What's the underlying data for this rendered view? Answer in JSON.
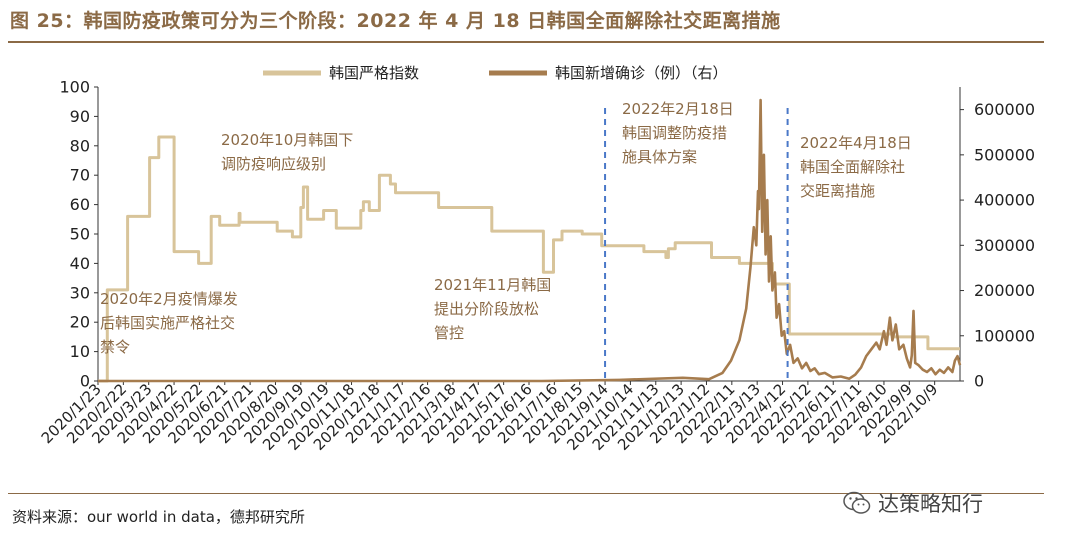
{
  "figure": {
    "title": "图 25：韩国防疫政策可分为三个阶段：2022 年 4 月 18 日韩国全面解除社交距离措施",
    "source": "资料来源：our world in data，德邦研究所",
    "watermark": "达策略知行"
  },
  "chart_data": {
    "type": "line",
    "title": "",
    "xlabel": "",
    "ylabel_left": "",
    "ylabel_right": "",
    "ylim_left": [
      0,
      100
    ],
    "ylim_right": [
      0,
      650000
    ],
    "yticks_left": [
      "0",
      "10",
      "20",
      "30",
      "40",
      "50",
      "60",
      "70",
      "80",
      "90",
      "100"
    ],
    "yticks_right": [
      "0",
      "100000",
      "200000",
      "300000",
      "400000",
      "500000",
      "600000"
    ],
    "x_start": "2020/1/23",
    "x_end": "2022/11/8",
    "xticks": [
      "2020/1/23",
      "2020/2/22",
      "2020/3/23",
      "2020/4/22",
      "2020/5/22",
      "2020/6/21",
      "2020/7/21",
      "2020/8/20",
      "2020/9/19",
      "2020/10/19",
      "2020/11/18",
      "2020/12/18",
      "2021/1/17",
      "2021/2/16",
      "2021/3/18",
      "2021/4/17",
      "2021/5/17",
      "2021/6/16",
      "2021/7/16",
      "2021/8/15",
      "2021/9/14",
      "2021/10/14",
      "2021/11/13",
      "2021/12/13",
      "2022/1/12",
      "2022/2/11",
      "2022/3/13",
      "2022/4/12",
      "2022/5/12",
      "2022/6/11",
      "2022/7/11",
      "2022/8/10",
      "2022/9/9",
      "2022/10/9"
    ],
    "legend_position": "top",
    "grid": false,
    "series": [
      {
        "name": "韩国严格指数",
        "axis": "left",
        "color": "#d8c49a",
        "points": [
          [
            "2020/1/23",
            0
          ],
          [
            "2020/2/3",
            31
          ],
          [
            "2020/2/24",
            31
          ],
          [
            "2020/2/27",
            56
          ],
          [
            "2020/3/20",
            56
          ],
          [
            "2020/3/24",
            76
          ],
          [
            "2020/4/1",
            76
          ],
          [
            "2020/4/4",
            83
          ],
          [
            "2020/4/18",
            83
          ],
          [
            "2020/4/22",
            44
          ],
          [
            "2020/5/19",
            44
          ],
          [
            "2020/5/21",
            40
          ],
          [
            "2020/6/2",
            40
          ],
          [
            "2020/6/5",
            56
          ],
          [
            "2020/6/12",
            56
          ],
          [
            "2020/6/15",
            53
          ],
          [
            "2020/7/7",
            53
          ],
          [
            "2020/7/8",
            57
          ],
          [
            "2020/7/9",
            54
          ],
          [
            "2020/8/20",
            54
          ],
          [
            "2020/8/22",
            51
          ],
          [
            "2020/9/7",
            51
          ],
          [
            "2020/9/9",
            49
          ],
          [
            "2020/9/17",
            49
          ],
          [
            "2020/9/19",
            59
          ],
          [
            "2020/9/22",
            66
          ],
          [
            "2020/9/27",
            55
          ],
          [
            "2020/10/14",
            55
          ],
          [
            "2020/10/16",
            58
          ],
          [
            "2020/10/28",
            58
          ],
          [
            "2020/10/31",
            52
          ],
          [
            "2020/11/26",
            52
          ],
          [
            "2020/11/29",
            58
          ],
          [
            "2020/12/2",
            61
          ],
          [
            "2020/12/9",
            58
          ],
          [
            "2020/12/18",
            58
          ],
          [
            "2020/12/21",
            70
          ],
          [
            "2020/12/30",
            70
          ],
          [
            "2021/1/3",
            67
          ],
          [
            "2021/1/9",
            64
          ],
          [
            "2021/2/26",
            64
          ],
          [
            "2021/3/1",
            59
          ],
          [
            "2021/4/30",
            59
          ],
          [
            "2021/5/3",
            51
          ],
          [
            "2021/6/28",
            51
          ],
          [
            "2021/7/3",
            37
          ],
          [
            "2021/7/13",
            37
          ],
          [
            "2021/7/15",
            48
          ],
          [
            "2021/7/23",
            48
          ],
          [
            "2021/7/25",
            51
          ],
          [
            "2021/8/15",
            51
          ],
          [
            "2021/8/18",
            50
          ],
          [
            "2021/9/7",
            50
          ],
          [
            "2021/9/10",
            46
          ],
          [
            "2021/10/30",
            44
          ],
          [
            "2021/11/25",
            42
          ],
          [
            "2021/11/28",
            45
          ],
          [
            "2021/12/3",
            45
          ],
          [
            "2021/12/6",
            47
          ],
          [
            "2022/1/14",
            47
          ],
          [
            "2022/1/18",
            42
          ],
          [
            "2022/2/18",
            42
          ],
          [
            "2022/2/20",
            40
          ],
          [
            "2022/3/26",
            40
          ],
          [
            "2022/3/31",
            33
          ],
          [
            "2022/4/17",
            33
          ],
          [
            "2022/4/20",
            16
          ],
          [
            "2022/8/20",
            15
          ],
          [
            "2022/9/26",
            15
          ],
          [
            "2022/10/1",
            11
          ],
          [
            "2022/11/8",
            11
          ]
        ]
      },
      {
        "name": "韩国新增确诊（例）（右）",
        "axis": "right",
        "color": "#a67c4e",
        "points": [
          [
            "2020/1/23",
            0
          ],
          [
            "2021/7/1",
            0
          ],
          [
            "2021/10/1",
            2500
          ],
          [
            "2021/12/15",
            7000
          ],
          [
            "2022/1/15",
            4000
          ],
          [
            "2022/1/31",
            18000
          ],
          [
            "2022/2/10",
            45000
          ],
          [
            "2022/2/20",
            90000
          ],
          [
            "2022/2/28",
            160000
          ],
          [
            "2022/3/5",
            250000
          ],
          [
            "2022/3/9",
            340000
          ],
          [
            "2022/3/12",
            300000
          ],
          [
            "2022/3/14",
            420000
          ],
          [
            "2022/3/15",
            380000
          ],
          [
            "2022/3/17",
            621000
          ],
          [
            "2022/3/19",
            330000
          ],
          [
            "2022/3/21",
            500000
          ],
          [
            "2022/3/23",
            280000
          ],
          [
            "2022/3/25",
            400000
          ],
          [
            "2022/3/27",
            220000
          ],
          [
            "2022/3/29",
            320000
          ],
          [
            "2022/3/31",
            200000
          ],
          [
            "2022/4/3",
            240000
          ],
          [
            "2022/4/5",
            140000
          ],
          [
            "2022/4/8",
            170000
          ],
          [
            "2022/4/11",
            100000
          ],
          [
            "2022/4/14",
            110000
          ],
          [
            "2022/4/17",
            60000
          ],
          [
            "2022/4/21",
            80000
          ],
          [
            "2022/4/25",
            40000
          ],
          [
            "2022/4/30",
            50000
          ],
          [
            "2022/5/5",
            28000
          ],
          [
            "2022/5/10",
            40000
          ],
          [
            "2022/5/15",
            22000
          ],
          [
            "2022/5/20",
            28000
          ],
          [
            "2022/5/25",
            15000
          ],
          [
            "2022/6/1",
            18000
          ],
          [
            "2022/6/10",
            8000
          ],
          [
            "2022/6/20",
            10000
          ],
          [
            "2022/6/30",
            5000
          ],
          [
            "2022/7/7",
            14000
          ],
          [
            "2022/7/14",
            30000
          ],
          [
            "2022/7/20",
            55000
          ],
          [
            "2022/7/26",
            70000
          ],
          [
            "2022/8/1",
            85000
          ],
          [
            "2022/8/5",
            70000
          ],
          [
            "2022/8/10",
            110000
          ],
          [
            "2022/8/13",
            80000
          ],
          [
            "2022/8/17",
            140000
          ],
          [
            "2022/8/20",
            90000
          ],
          [
            "2022/8/24",
            125000
          ],
          [
            "2022/8/28",
            70000
          ],
          [
            "2022/9/2",
            80000
          ],
          [
            "2022/9/6",
            50000
          ],
          [
            "2022/9/10",
            30000
          ],
          [
            "2022/9/12",
            57000
          ],
          [
            "2022/9/14",
            155000
          ],
          [
            "2022/9/16",
            40000
          ],
          [
            "2022/9/20",
            35000
          ],
          [
            "2022/9/25",
            25000
          ],
          [
            "2022/9/30",
            20000
          ],
          [
            "2022/10/5",
            28000
          ],
          [
            "2022/10/10",
            15000
          ],
          [
            "2022/10/15",
            25000
          ],
          [
            "2022/10/20",
            18000
          ],
          [
            "2022/10/25",
            30000
          ],
          [
            "2022/10/30",
            20000
          ],
          [
            "2022/11/2",
            45000
          ],
          [
            "2022/11/5",
            55000
          ],
          [
            "2022/11/8",
            35000
          ]
        ]
      }
    ],
    "markers": [
      {
        "date": "2021/9/14",
        "style": "dashed",
        "color": "#4a78c8"
      },
      {
        "date": "2022/4/18",
        "style": "dashed",
        "color": "#4a78c8"
      }
    ],
    "annotations": [
      {
        "lines": [
          "2020年2月疫情爆发",
          "后韩国实施严格社交",
          "禁令"
        ]
      },
      {
        "lines": [
          "2020年10月韩国下",
          "调防疫响应级别"
        ]
      },
      {
        "lines": [
          "2021年11月韩国",
          "提出分阶段放松",
          "管控"
        ]
      },
      {
        "lines": [
          "2022年2月18日",
          "韩国调整防疫措",
          "施具体方案"
        ]
      },
      {
        "lines": [
          "2022年4月18日",
          "韩国全面解除社",
          "交距离措施"
        ]
      }
    ]
  }
}
